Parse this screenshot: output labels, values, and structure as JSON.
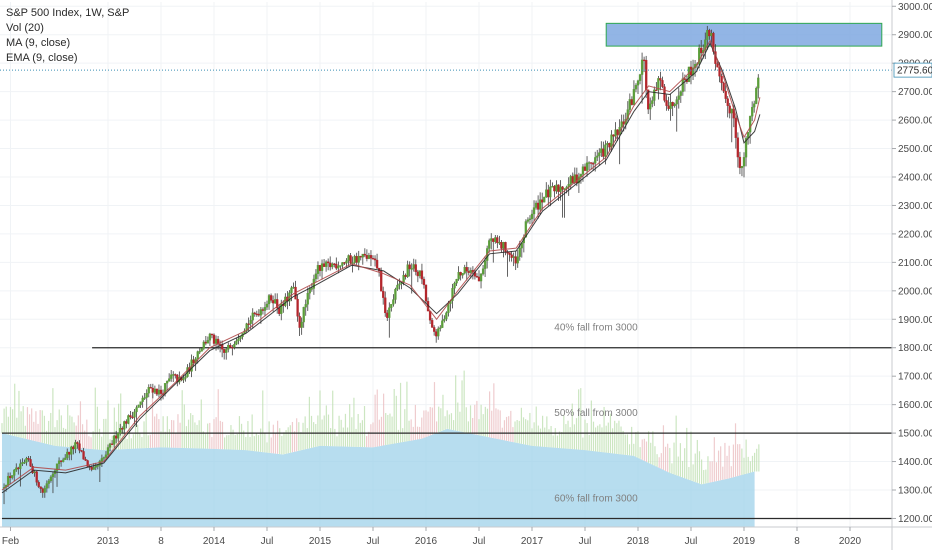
{
  "chart_data": {
    "type": "candlestick",
    "title": "S&P 500 Index, 1W, S&P",
    "legend": [
      "Vol (20)",
      "MA (9, close)",
      "EMA (9, close)"
    ],
    "last_price": "2775.60",
    "y_ticks": [
      "1200.00",
      "1300.00",
      "1400.00",
      "1500.00",
      "1600.00",
      "1700.00",
      "1800.00",
      "1900.00",
      "2000.00",
      "2100.00",
      "2200.00",
      "2300.00",
      "2400.00",
      "2500.00",
      "2600.00",
      "2700.00",
      "2800.00",
      "2900.00",
      "3000.00"
    ],
    "ylim": [
      1170,
      3015
    ],
    "x_ticks": [
      {
        "label": "Feb",
        "t": 2012.08
      },
      {
        "label": "2013",
        "t": 2013.0
      },
      {
        "label": "8",
        "t": 2013.5
      },
      {
        "label": "2014",
        "t": 2014.0
      },
      {
        "label": "Jul",
        "t": 2014.5
      },
      {
        "label": "2015",
        "t": 2015.0
      },
      {
        "label": "Jul",
        "t": 2015.5
      },
      {
        "label": "2016",
        "t": 2016.0
      },
      {
        "label": "Jul",
        "t": 2016.5
      },
      {
        "label": "2017",
        "t": 2017.0
      },
      {
        "label": "Jul",
        "t": 2017.5
      },
      {
        "label": "2018",
        "t": 2018.0
      },
      {
        "label": "Jul",
        "t": 2018.5
      },
      {
        "label": "2019",
        "t": 2019.0
      },
      {
        "label": "8",
        "t": 2019.5
      },
      {
        "label": "2020",
        "t": 2020.0
      }
    ],
    "price_path": [
      [
        2012.0,
        1310
      ],
      [
        2012.08,
        1350
      ],
      [
        2012.25,
        1405
      ],
      [
        2012.38,
        1290
      ],
      [
        2012.5,
        1380
      ],
      [
        2012.7,
        1460
      ],
      [
        2012.85,
        1360
      ],
      [
        2012.96,
        1410
      ],
      [
        2013.1,
        1510
      ],
      [
        2013.3,
        1600
      ],
      [
        2013.4,
        1660
      ],
      [
        2013.5,
        1640
      ],
      [
        2013.6,
        1700
      ],
      [
        2013.7,
        1680
      ],
      [
        2013.85,
        1790
      ],
      [
        2013.96,
        1840
      ],
      [
        2014.1,
        1780
      ],
      [
        2014.3,
        1880
      ],
      [
        2014.55,
        1980
      ],
      [
        2014.62,
        1930
      ],
      [
        2014.75,
        2010
      ],
      [
        2014.8,
        1870
      ],
      [
        2014.96,
        2070
      ],
      [
        2015.1,
        2090
      ],
      [
        2015.3,
        2110
      ],
      [
        2015.45,
        2120
      ],
      [
        2015.55,
        2080
      ],
      [
        2015.62,
        1900
      ],
      [
        2015.72,
        2000
      ],
      [
        2015.85,
        2090
      ],
      [
        2015.96,
        2050
      ],
      [
        2016.05,
        1860
      ],
      [
        2016.12,
        1850
      ],
      [
        2016.3,
        2060
      ],
      [
        2016.45,
        2080
      ],
      [
        2016.5,
        2030
      ],
      [
        2016.6,
        2180
      ],
      [
        2016.75,
        2150
      ],
      [
        2016.85,
        2090
      ],
      [
        2016.96,
        2250
      ],
      [
        2017.1,
        2330
      ],
      [
        2017.25,
        2360
      ],
      [
        2017.4,
        2390
      ],
      [
        2017.55,
        2450
      ],
      [
        2017.7,
        2500
      ],
      [
        2017.85,
        2580
      ],
      [
        2017.96,
        2690
      ],
      [
        2018.05,
        2830
      ],
      [
        2018.1,
        2620
      ],
      [
        2018.2,
        2740
      ],
      [
        2018.3,
        2640
      ],
      [
        2018.4,
        2720
      ],
      [
        2018.55,
        2810
      ],
      [
        2018.68,
        2920
      ],
      [
        2018.75,
        2770
      ],
      [
        2018.82,
        2660
      ],
      [
        2018.9,
        2630
      ],
      [
        2018.97,
        2400
      ],
      [
        2019.05,
        2590
      ],
      [
        2019.15,
        2775.6
      ]
    ],
    "ma_path": [
      [
        2012.0,
        1290
      ],
      [
        2012.3,
        1370
      ],
      [
        2012.6,
        1360
      ],
      [
        2012.96,
        1395
      ],
      [
        2013.3,
        1550
      ],
      [
        2013.6,
        1660
      ],
      [
        2013.96,
        1790
      ],
      [
        2014.3,
        1850
      ],
      [
        2014.75,
        1980
      ],
      [
        2014.96,
        2020
      ],
      [
        2015.3,
        2090
      ],
      [
        2015.6,
        2070
      ],
      [
        2015.85,
        2010
      ],
      [
        2016.1,
        1920
      ],
      [
        2016.3,
        1990
      ],
      [
        2016.6,
        2130
      ],
      [
        2016.85,
        2140
      ],
      [
        2017.1,
        2280
      ],
      [
        2017.4,
        2370
      ],
      [
        2017.7,
        2460
      ],
      [
        2017.96,
        2630
      ],
      [
        2018.1,
        2700
      ],
      [
        2018.3,
        2690
      ],
      [
        2018.55,
        2770
      ],
      [
        2018.68,
        2870
      ],
      [
        2018.8,
        2770
      ],
      [
        2018.92,
        2640
      ],
      [
        2019.0,
        2520
      ],
      [
        2019.1,
        2560
      ],
      [
        2019.15,
        2620
      ]
    ],
    "ema_path": [
      [
        2012.0,
        1300
      ],
      [
        2012.3,
        1380
      ],
      [
        2012.6,
        1370
      ],
      [
        2012.96,
        1400
      ],
      [
        2013.3,
        1560
      ],
      [
        2013.6,
        1665
      ],
      [
        2013.96,
        1800
      ],
      [
        2014.3,
        1860
      ],
      [
        2014.75,
        1990
      ],
      [
        2014.96,
        2030
      ],
      [
        2015.3,
        2095
      ],
      [
        2015.6,
        2060
      ],
      [
        2015.85,
        2020
      ],
      [
        2016.1,
        1900
      ],
      [
        2016.3,
        2000
      ],
      [
        2016.6,
        2140
      ],
      [
        2016.85,
        2150
      ],
      [
        2017.1,
        2290
      ],
      [
        2017.4,
        2380
      ],
      [
        2017.7,
        2470
      ],
      [
        2017.96,
        2650
      ],
      [
        2018.1,
        2720
      ],
      [
        2018.3,
        2700
      ],
      [
        2018.55,
        2790
      ],
      [
        2018.68,
        2880
      ],
      [
        2018.8,
        2760
      ],
      [
        2018.92,
        2620
      ],
      [
        2019.0,
        2540
      ],
      [
        2019.1,
        2600
      ],
      [
        2019.15,
        2680
      ]
    ],
    "volume_profile": [
      [
        2012.0,
        1500
      ],
      [
        2012.5,
        1455
      ],
      [
        2012.96,
        1440
      ],
      [
        2013.5,
        1450
      ],
      [
        2013.96,
        1445
      ],
      [
        2014.3,
        1440
      ],
      [
        2014.65,
        1425
      ],
      [
        2015.0,
        1455
      ],
      [
        2015.5,
        1450
      ],
      [
        2015.96,
        1480
      ],
      [
        2016.2,
        1515
      ],
      [
        2016.6,
        1485
      ],
      [
        2017.0,
        1455
      ],
      [
        2017.5,
        1440
      ],
      [
        2017.96,
        1420
      ],
      [
        2018.3,
        1360
      ],
      [
        2018.6,
        1320
      ],
      [
        2018.85,
        1340
      ],
      [
        2019.1,
        1365
      ]
    ],
    "horizontal_levels": [
      {
        "price": 1800,
        "label": "40% fall from 3000",
        "x_start": 2012.85
      },
      {
        "price": 1500,
        "label": "50% fall from 3000",
        "x_start": 2012.0
      },
      {
        "price": 1200,
        "label": "60% fall from 3000",
        "x_start": 2012.0
      }
    ],
    "resistance_zone": {
      "from": 2860,
      "to": 2940,
      "t_start": 2017.7,
      "t_end": 2020.3
    },
    "colors": {
      "up": "#5b9d3a",
      "down": "#b3262c",
      "ma": "#2a2a2a",
      "ema": "#b04a4a",
      "volume": "#9fd1ea",
      "zone_fill": "#7fa8e0",
      "zone_border": "#2fa84f",
      "level": "#2b2b2b",
      "last_line": "#3c8fb4"
    }
  }
}
